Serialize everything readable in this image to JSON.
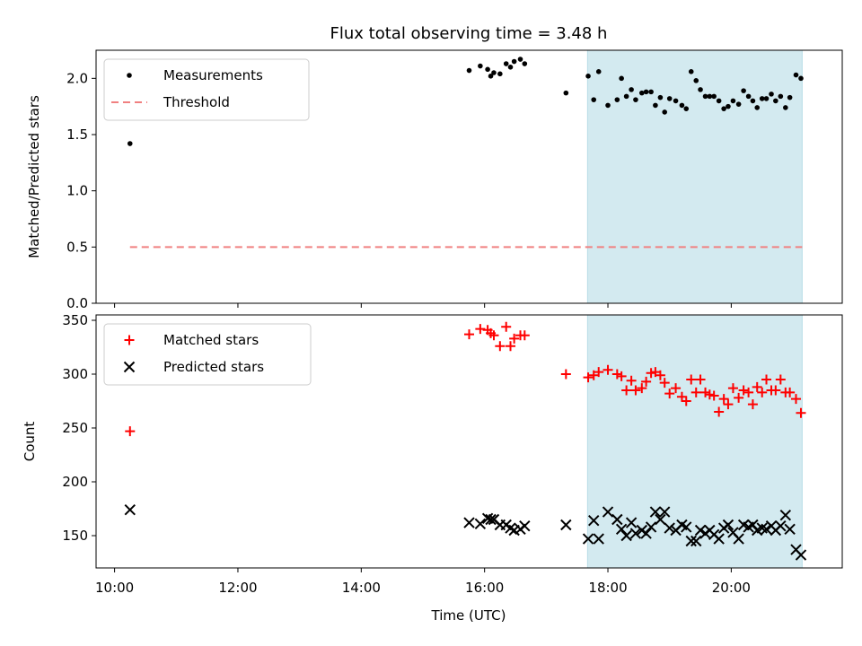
{
  "chart_data": {
    "title": "Flux total observing time = 3.48 h",
    "xlabel": "Time (UTC)",
    "x_ticks": [
      "10:00",
      "12:00",
      "14:00",
      "16:00",
      "18:00",
      "20:00"
    ],
    "x_tick_hours": [
      10,
      12,
      14,
      16,
      18,
      20
    ],
    "xlim_hours": [
      9.7,
      21.8
    ],
    "highlight_span_hours": [
      17.67,
      21.15
    ],
    "highlight_color": "#d3eaf0",
    "panels": [
      {
        "type": "scatter",
        "ylabel": "Matched/Predicted stars",
        "ylim": [
          0,
          2.25
        ],
        "y_ticks": [
          0.0,
          0.5,
          1.0,
          1.5,
          2.0
        ],
        "y_tick_labels": [
          "0.0",
          "0.5",
          "1.0",
          "1.5",
          "2.0"
        ],
        "legend": {
          "placement": "top-left"
        },
        "threshold": {
          "name": "Threshold",
          "value": 0.5,
          "x_range_hours": [
            10.25,
            21.15
          ],
          "color": "#f08080",
          "style": "dashed"
        },
        "series": [
          {
            "name": "Measurements",
            "marker": "dot",
            "color": "#000000",
            "points": [
              [
                10.25,
                1.42
              ],
              [
                15.75,
                2.07
              ],
              [
                15.93,
                2.11
              ],
              [
                16.05,
                2.08
              ],
              [
                16.1,
                2.02
              ],
              [
                16.15,
                2.05
              ],
              [
                16.25,
                2.04
              ],
              [
                16.35,
                2.13
              ],
              [
                16.42,
                2.1
              ],
              [
                16.48,
                2.15
              ],
              [
                16.58,
                2.17
              ],
              [
                16.65,
                2.13
              ],
              [
                17.32,
                1.87
              ],
              [
                17.68,
                2.02
              ],
              [
                17.77,
                1.81
              ],
              [
                17.85,
                2.06
              ],
              [
                18.0,
                1.76
              ],
              [
                18.15,
                1.81
              ],
              [
                18.22,
                2.0
              ],
              [
                18.3,
                1.84
              ],
              [
                18.38,
                1.9
              ],
              [
                18.45,
                1.81
              ],
              [
                18.55,
                1.87
              ],
              [
                18.62,
                1.88
              ],
              [
                18.7,
                1.88
              ],
              [
                18.77,
                1.76
              ],
              [
                18.85,
                1.83
              ],
              [
                18.92,
                1.7
              ],
              [
                19.0,
                1.82
              ],
              [
                19.1,
                1.8
              ],
              [
                19.2,
                1.76
              ],
              [
                19.27,
                1.73
              ],
              [
                19.35,
                2.06
              ],
              [
                19.43,
                1.98
              ],
              [
                19.5,
                1.9
              ],
              [
                19.58,
                1.84
              ],
              [
                19.65,
                1.84
              ],
              [
                19.72,
                1.84
              ],
              [
                19.8,
                1.8
              ],
              [
                19.88,
                1.73
              ],
              [
                19.95,
                1.75
              ],
              [
                20.03,
                1.8
              ],
              [
                20.12,
                1.77
              ],
              [
                20.2,
                1.89
              ],
              [
                20.28,
                1.84
              ],
              [
                20.35,
                1.8
              ],
              [
                20.42,
                1.74
              ],
              [
                20.5,
                1.82
              ],
              [
                20.57,
                1.82
              ],
              [
                20.65,
                1.86
              ],
              [
                20.72,
                1.8
              ],
              [
                20.8,
                1.84
              ],
              [
                20.88,
                1.74
              ],
              [
                20.95,
                1.83
              ],
              [
                21.05,
                2.03
              ],
              [
                21.13,
                2.0
              ]
            ]
          }
        ]
      },
      {
        "type": "scatter",
        "ylabel": "Count",
        "ylim": [
          120,
          355
        ],
        "y_ticks": [
          150,
          200,
          250,
          300,
          350
        ],
        "y_tick_labels": [
          "150",
          "200",
          "250",
          "300",
          "350"
        ],
        "legend": {
          "placement": "top-left"
        },
        "series": [
          {
            "name": "Matched stars",
            "marker": "plus",
            "color": "#ff0000",
            "points": [
              [
                10.25,
                247
              ],
              [
                15.75,
                337
              ],
              [
                15.93,
                342
              ],
              [
                16.05,
                341
              ],
              [
                16.1,
                338
              ],
              [
                16.15,
                336
              ],
              [
                16.25,
                326
              ],
              [
                16.35,
                344
              ],
              [
                16.42,
                326
              ],
              [
                16.48,
                333
              ],
              [
                16.58,
                336
              ],
              [
                16.65,
                336
              ],
              [
                17.32,
                300
              ],
              [
                17.68,
                297
              ],
              [
                17.77,
                299
              ],
              [
                17.85,
                302
              ],
              [
                18.0,
                304
              ],
              [
                18.15,
                300
              ],
              [
                18.22,
                298
              ],
              [
                18.3,
                285
              ],
              [
                18.38,
                294
              ],
              [
                18.45,
                285
              ],
              [
                18.55,
                287
              ],
              [
                18.62,
                293
              ],
              [
                18.7,
                301
              ],
              [
                18.77,
                302
              ],
              [
                18.85,
                299
              ],
              [
                18.92,
                292
              ],
              [
                19.0,
                282
              ],
              [
                19.1,
                287
              ],
              [
                19.2,
                279
              ],
              [
                19.27,
                275
              ],
              [
                19.35,
                295
              ],
              [
                19.43,
                283
              ],
              [
                19.5,
                295
              ],
              [
                19.58,
                283
              ],
              [
                19.65,
                281
              ],
              [
                19.72,
                280
              ],
              [
                19.8,
                265
              ],
              [
                19.88,
                277
              ],
              [
                19.95,
                272
              ],
              [
                20.03,
                287
              ],
              [
                20.12,
                278
              ],
              [
                20.2,
                285
              ],
              [
                20.28,
                283
              ],
              [
                20.35,
                272
              ],
              [
                20.42,
                288
              ],
              [
                20.5,
                283
              ],
              [
                20.57,
                295
              ],
              [
                20.65,
                285
              ],
              [
                20.72,
                285
              ],
              [
                20.8,
                295
              ],
              [
                20.88,
                283
              ],
              [
                20.95,
                283
              ],
              [
                21.05,
                277
              ],
              [
                21.13,
                264
              ]
            ]
          },
          {
            "name": "Predicted stars",
            "marker": "x",
            "color": "#000000",
            "points": [
              [
                10.25,
                174
              ],
              [
                15.75,
                162
              ],
              [
                15.93,
                161
              ],
              [
                16.05,
                166
              ],
              [
                16.1,
                165
              ],
              [
                16.15,
                165
              ],
              [
                16.25,
                160
              ],
              [
                16.35,
                160
              ],
              [
                16.42,
                157
              ],
              [
                16.48,
                155
              ],
              [
                16.58,
                156
              ],
              [
                16.65,
                159
              ],
              [
                17.32,
                160
              ],
              [
                17.68,
                147
              ],
              [
                17.77,
                164
              ],
              [
                17.85,
                147
              ],
              [
                18.0,
                172
              ],
              [
                18.15,
                165
              ],
              [
                18.22,
                156
              ],
              [
                18.3,
                150
              ],
              [
                18.38,
                162
              ],
              [
                18.45,
                152
              ],
              [
                18.55,
                155
              ],
              [
                18.62,
                152
              ],
              [
                18.7,
                158
              ],
              [
                18.77,
                172
              ],
              [
                18.85,
                165
              ],
              [
                18.92,
                172
              ],
              [
                19.0,
                157
              ],
              [
                19.1,
                155
              ],
              [
                19.2,
                160
              ],
              [
                19.27,
                158
              ],
              [
                19.35,
                145
              ],
              [
                19.43,
                145
              ],
              [
                19.5,
                155
              ],
              [
                19.58,
                152
              ],
              [
                19.65,
                155
              ],
              [
                19.72,
                151
              ],
              [
                19.8,
                147
              ],
              [
                19.88,
                157
              ],
              [
                19.95,
                160
              ],
              [
                20.03,
                153
              ],
              [
                20.12,
                147
              ],
              [
                20.2,
                160
              ],
              [
                20.28,
                158
              ],
              [
                20.35,
                160
              ],
              [
                20.42,
                155
              ],
              [
                20.5,
                157
              ],
              [
                20.57,
                156
              ],
              [
                20.65,
                159
              ],
              [
                20.72,
                155
              ],
              [
                20.8,
                159
              ],
              [
                20.88,
                169
              ],
              [
                20.95,
                156
              ],
              [
                21.05,
                137
              ],
              [
                21.13,
                132
              ]
            ]
          }
        ]
      }
    ]
  }
}
